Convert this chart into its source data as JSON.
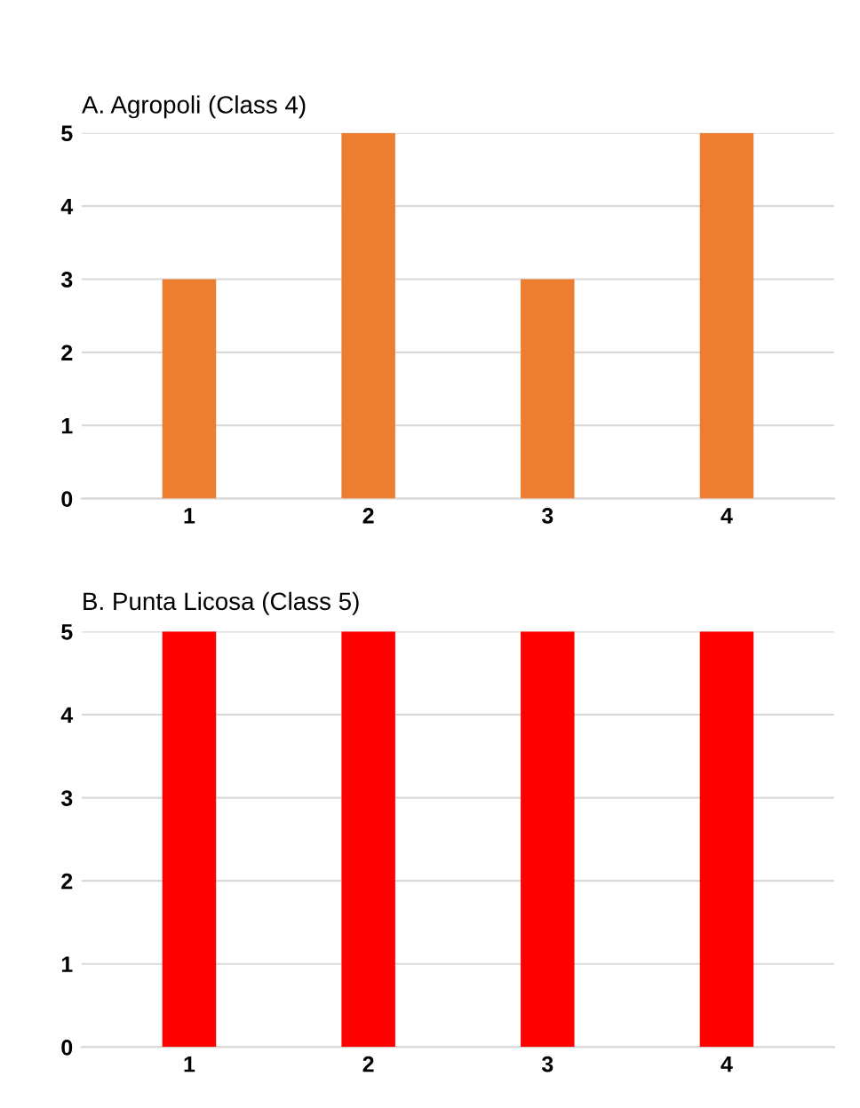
{
  "chart_data": [
    {
      "type": "bar",
      "title": "A. Agropoli (Class 4)",
      "categories": [
        "1",
        "2",
        "3",
        "4"
      ],
      "values": [
        3,
        5,
        3,
        5
      ],
      "color": "#ed7d31",
      "ylim": [
        0,
        5
      ],
      "yticks": [
        0,
        1,
        2,
        3,
        4,
        5
      ],
      "grid": "y",
      "legend": false
    },
    {
      "type": "bar",
      "title": "B. Punta Licosa (Class 5)",
      "categories": [
        "1",
        "2",
        "3",
        "4"
      ],
      "values": [
        5,
        5,
        5,
        5
      ],
      "color": "#ff0000",
      "ylim": [
        0,
        5
      ],
      "yticks": [
        0,
        1,
        2,
        3,
        4,
        5
      ],
      "grid": "y",
      "legend": false
    }
  ]
}
